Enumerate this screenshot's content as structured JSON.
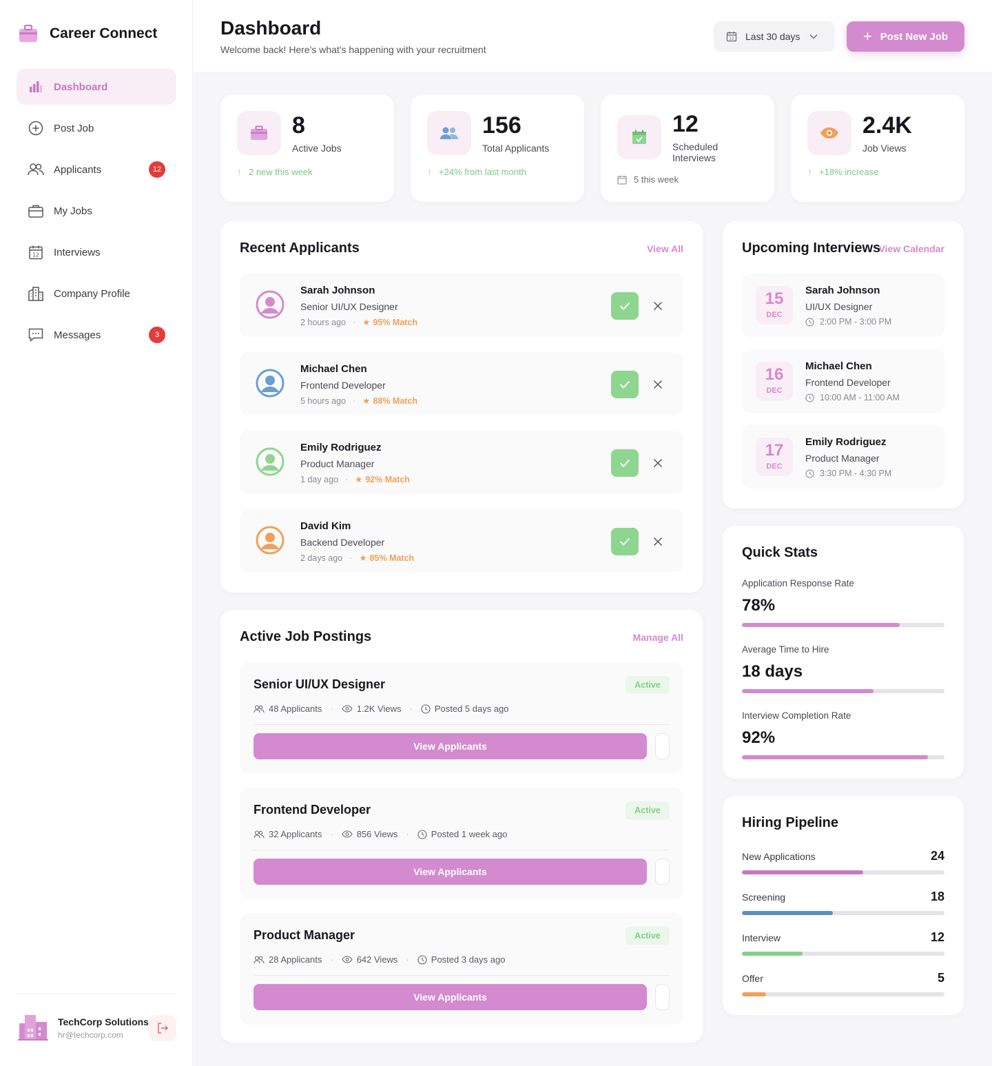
{
  "brand": {
    "name": "Career Connect"
  },
  "nav": [
    {
      "label": "Dashboard",
      "icon": "bar-chart-icon",
      "active": true
    },
    {
      "label": "Post Job",
      "icon": "plus-circle-icon"
    },
    {
      "label": "Applicants",
      "icon": "users-icon",
      "badge": "12"
    },
    {
      "label": "My Jobs",
      "icon": "briefcase-icon"
    },
    {
      "label": "Interviews",
      "icon": "calendar-icon"
    },
    {
      "label": "Company Profile",
      "icon": "building-icon"
    },
    {
      "label": "Messages",
      "icon": "message-icon",
      "badge": "3"
    }
  ],
  "company": {
    "name": "TechCorp Solutions",
    "email": "hr@techcorp.com"
  },
  "header": {
    "title": "Dashboard",
    "subtitle": "Welcome back! Here's what's happening with your recruitment",
    "date_filter": "Last 30 days",
    "post_button": "Post New Job"
  },
  "stats": [
    {
      "value": "8",
      "label": "Active Jobs",
      "trend": "2 new this week",
      "icon": "briefcase-icon"
    },
    {
      "value": "156",
      "label": "Total Applicants",
      "trend": "+24% from last month",
      "icon": "users-icon"
    },
    {
      "value": "12",
      "label": "Scheduled Interviews",
      "trend": "5 this week",
      "icon": "calendar-check-icon"
    },
    {
      "value": "2.4K",
      "label": "Job Views",
      "trend": "+18% increase",
      "icon": "eye-icon"
    }
  ],
  "recent_applicants": {
    "title": "Recent Applicants",
    "link": "View All",
    "items": [
      {
        "name": "Sarah Johnson",
        "role": "Senior UI/UX Designer",
        "time": "2 hours ago",
        "match": "95% Match",
        "color": "#d48ace"
      },
      {
        "name": "Michael Chen",
        "role": "Frontend Developer",
        "time": "5 hours ago",
        "match": "88% Match",
        "color": "#6a9fd4"
      },
      {
        "name": "Emily Rodriguez",
        "role": "Product Manager",
        "time": "1 day ago",
        "match": "92% Match",
        "color": "#8ed690"
      },
      {
        "name": "David Kim",
        "role": "Backend Developer",
        "time": "2 days ago",
        "match": "85% Match",
        "color": "#f0a058"
      }
    ]
  },
  "job_postings": {
    "title": "Active Job Postings",
    "link": "Manage All",
    "button_label": "View Applicants",
    "items": [
      {
        "title": "Senior UI/UX Designer",
        "status": "Active",
        "applicants": "48 Applicants",
        "views": "1.2K Views",
        "posted": "Posted 5 days ago"
      },
      {
        "title": "Frontend Developer",
        "status": "Active",
        "applicants": "32 Applicants",
        "views": "856 Views",
        "posted": "Posted 1 week ago"
      },
      {
        "title": "Product Manager",
        "status": "Active",
        "applicants": "28 Applicants",
        "views": "642 Views",
        "posted": "Posted 3 days ago"
      }
    ]
  },
  "interviews": {
    "title": "Upcoming Interviews",
    "link": "View Calendar",
    "items": [
      {
        "day": "15",
        "month": "DEC",
        "name": "Sarah Johnson",
        "role": "UI/UX Designer",
        "time": "2:00 PM - 3:00 PM"
      },
      {
        "day": "16",
        "month": "DEC",
        "name": "Michael Chen",
        "role": "Frontend Developer",
        "time": "10:00 AM - 11:00 AM"
      },
      {
        "day": "17",
        "month": "DEC",
        "name": "Emily Rodriguez",
        "role": "Product Manager",
        "time": "3:30 PM - 4:30 PM"
      }
    ]
  },
  "quick_stats": {
    "title": "Quick Stats",
    "items": [
      {
        "label": "Application Response Rate",
        "value": "78%",
        "progress": 0.78
      },
      {
        "label": "Average Time to Hire",
        "value": "18 days",
        "progress": 0.65
      },
      {
        "label": "Interview Completion Rate",
        "value": "92%",
        "progress": 0.92
      }
    ]
  },
  "pipeline": {
    "title": "Hiring Pipeline",
    "items": [
      {
        "label": "New Applications",
        "value": "24",
        "progress": 0.6,
        "color": "#c779c0"
      },
      {
        "label": "Screening",
        "value": "18",
        "progress": 0.45,
        "color": "#5a8fc4"
      },
      {
        "label": "Interview",
        "value": "12",
        "progress": 0.3,
        "color": "#86cf8a"
      },
      {
        "label": "Offer",
        "value": "5",
        "progress": 0.12,
        "color": "#f0a058"
      }
    ]
  },
  "colors": {
    "accent": "#d48ace",
    "success": "#8ed690",
    "danger": "#e53b3b"
  }
}
